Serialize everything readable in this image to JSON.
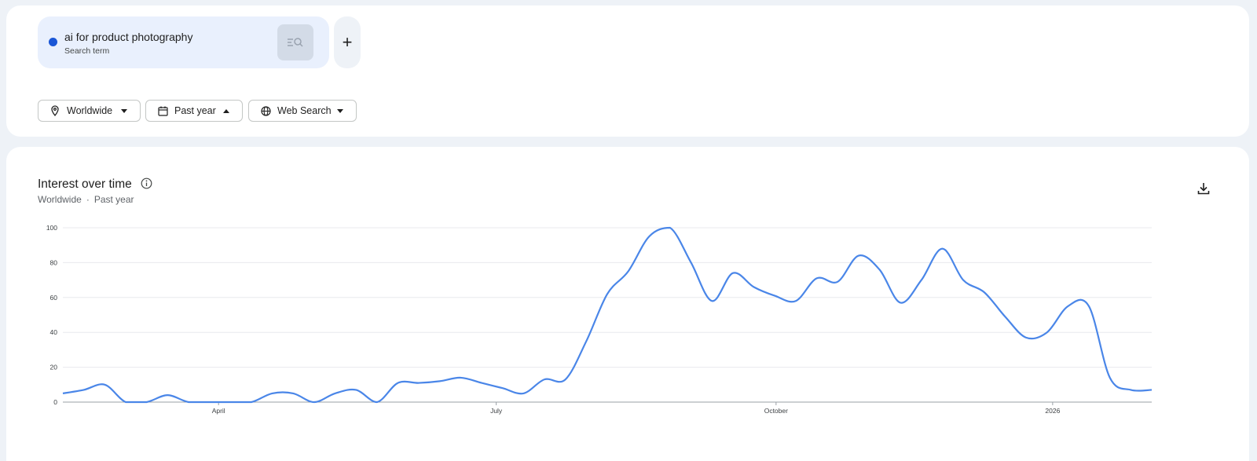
{
  "search_term": {
    "title": "ai for product photography",
    "subtitle": "Search term",
    "color": "#1a56d6",
    "action_icon": "compare-search-icon",
    "add_icon": "plus-icon",
    "add_label": "+"
  },
  "filters": [
    {
      "label": "Worldwide",
      "icon": "location-pin-icon",
      "caret": "down"
    },
    {
      "label": "Past year",
      "icon": "calendar-icon",
      "caret": "up"
    },
    {
      "label": "Web Search",
      "icon": "globe-icon",
      "caret": "down"
    }
  ],
  "chart_card": {
    "title": "Interest over time",
    "subtitle_location": "Worldwide",
    "subtitle_separator": "·",
    "subtitle_time": "Past year"
  },
  "chart_data": {
    "type": "line",
    "title": "Interest over time",
    "xlabel": "",
    "ylabel": "",
    "ylim": [
      0,
      100
    ],
    "yticks": [
      0,
      20,
      40,
      60,
      80,
      100
    ],
    "xticks": [
      "April",
      "July",
      "October",
      "2026"
    ],
    "grid": true,
    "legend": "none",
    "line_color": "#4a86e8",
    "series": [
      {
        "name": "ai for product photography",
        "x": [
          "Feb 2025",
          "Feb 2025",
          "Feb 2025",
          "Mar 2025",
          "Mar 2025",
          "Mar 2025",
          "Mar 2025",
          "Mar 2025",
          "Apr 2025",
          "Apr 2025",
          "Apr 2025",
          "Apr 2025",
          "Apr 2025",
          "May 2025",
          "May 2025",
          "May 2025",
          "May 2025",
          "Jun 2025",
          "Jun 2025",
          "Jun 2025",
          "Jun 2025",
          "Jun 2025",
          "Jul 2025",
          "Jul 2025",
          "Jul 2025",
          "Jul 2025",
          "Aug 2025",
          "Aug 2025",
          "Aug 2025",
          "Aug 2025",
          "Aug 2025",
          "Sep 2025",
          "Sep 2025",
          "Sep 2025",
          "Sep 2025",
          "Oct 2025",
          "Oct 2025",
          "Oct 2025",
          "Oct 2025",
          "Nov 2025",
          "Nov 2025",
          "Nov 2025",
          "Nov 2025",
          "Nov 2025",
          "Dec 2025",
          "Dec 2025",
          "Dec 2025",
          "Dec 2025",
          "Jan 2026",
          "Jan 2026",
          "Jan 2026",
          "Jan 2026",
          "Feb 2026"
        ],
        "values": [
          5,
          7,
          10,
          0,
          0,
          4,
          0,
          0,
          0,
          0,
          5,
          5,
          0,
          5,
          7,
          0,
          11,
          11,
          12,
          14,
          11,
          8,
          5,
          13,
          13,
          35,
          62,
          75,
          95,
          100,
          80,
          58,
          74,
          66,
          61,
          58,
          71,
          69,
          84,
          76,
          57,
          70,
          88,
          70,
          63,
          49,
          37,
          40,
          55,
          55,
          14,
          7,
          7
        ]
      }
    ]
  }
}
